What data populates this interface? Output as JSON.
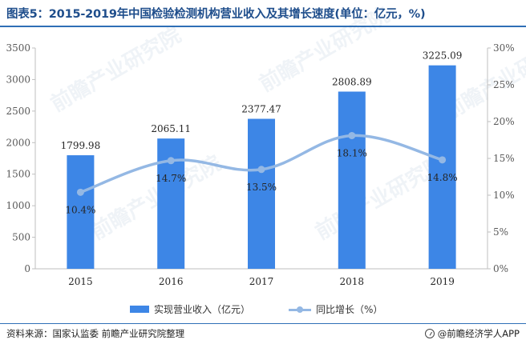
{
  "header": {
    "title": "图表5：2015-2019年中国检验检测机构营业收入及其增长速度(单位：亿元，%)"
  },
  "chart_data": {
    "type": "bar+line",
    "categories": [
      "2015",
      "2016",
      "2017",
      "2018",
      "2019"
    ],
    "series": [
      {
        "name": "实现营业收入（亿元）",
        "type": "bar",
        "axis": "left",
        "values": [
          1799.98,
          2065.11,
          2377.47,
          2808.89,
          3225.09
        ],
        "labels": [
          "1799.98",
          "2065.11",
          "2377.47",
          "2808.89",
          "3225.09"
        ],
        "color": "#3d86e6"
      },
      {
        "name": "同比增长（%）",
        "type": "line",
        "axis": "right",
        "values": [
          10.4,
          14.7,
          13.5,
          18.1,
          14.8
        ],
        "labels": [
          "10.4%",
          "14.7%",
          "13.5%",
          "18.1%",
          "14.8%"
        ],
        "color": "#94b8e4"
      }
    ],
    "y_left": {
      "min": 0,
      "max": 3500,
      "ticks": [
        0,
        500,
        1000,
        1500,
        2000,
        2500,
        3000,
        3500
      ],
      "tick_labels": [
        "0",
        "500",
        "1000",
        "1500",
        "2000",
        "2500",
        "3000",
        "3500"
      ]
    },
    "y_right": {
      "min": 0,
      "max": 30,
      "ticks": [
        0,
        5,
        10,
        15,
        20,
        25,
        30
      ],
      "tick_labels": [
        "0%",
        "5%",
        "10%",
        "15%",
        "20%",
        "25%",
        "30%"
      ]
    },
    "grid": false,
    "legend_position": "bottom"
  },
  "footer": {
    "source": "资料来源：国家认监委 前瞻产业研究院整理",
    "brand": "@前瞻经济学人APP"
  },
  "watermark": "前瞻产业研究院"
}
